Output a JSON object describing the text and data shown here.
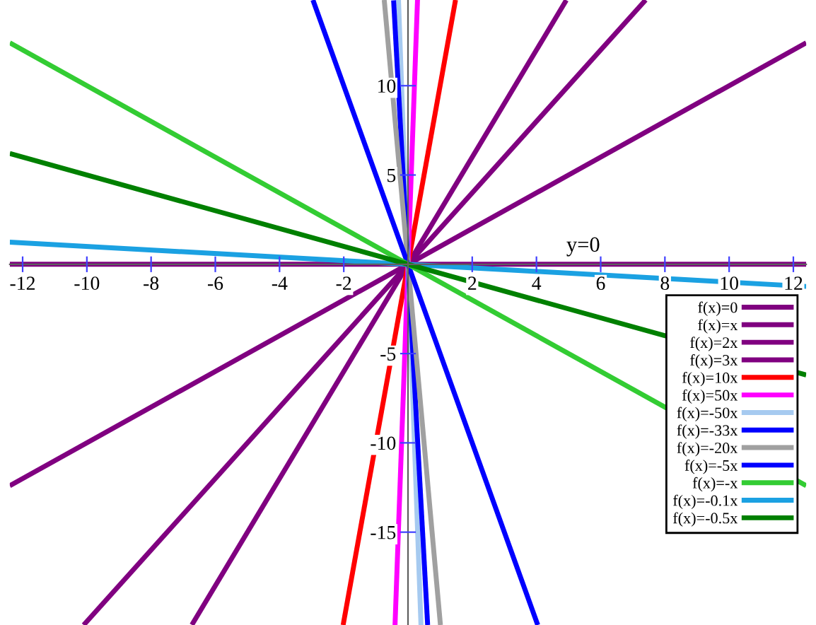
{
  "chart_data": {
    "type": "line",
    "xlim": [
      -12.4,
      12.4
    ],
    "ylim": [
      -20.2,
      14.8
    ],
    "xticks": [
      -12,
      -10,
      -8,
      -6,
      -4,
      -2,
      2,
      4,
      6,
      8,
      10,
      12
    ],
    "yticks": [
      -15,
      -10,
      -5,
      5,
      10
    ],
    "grid": false,
    "legend": "right",
    "marker": "none",
    "line_style": "solid",
    "annotations": [
      "y=0"
    ],
    "series": [
      {
        "name": "f(x)=0",
        "color": "#800080",
        "x": [
          -12.4,
          12.4
        ],
        "values": [
          0,
          0
        ]
      },
      {
        "name": "f(x)=x",
        "color": "#800080",
        "x": [
          -12.4,
          12.4
        ],
        "values": [
          -12.4,
          12.4
        ]
      },
      {
        "name": "f(x)=2x",
        "color": "#800080",
        "x": [
          -10.1,
          7.4
        ],
        "values": [
          -20.2,
          14.8
        ]
      },
      {
        "name": "f(x)=3x",
        "color": "#800080",
        "x": [
          -6.73,
          4.93
        ],
        "values": [
          -20.19,
          14.79
        ]
      },
      {
        "name": "f(x)=10x",
        "color": "#ff0000",
        "x": [
          -2.02,
          1.48
        ],
        "values": [
          -20.2,
          14.8
        ]
      },
      {
        "name": "f(x)=50x",
        "color": "#ff00ff",
        "x": [
          -0.404,
          0.296
        ],
        "values": [
          -20.2,
          14.8
        ]
      },
      {
        "name": "f(x)=-50x",
        "color": "#a6caf0",
        "x": [
          -0.296,
          0.404
        ],
        "values": [
          14.8,
          -20.2
        ]
      },
      {
        "name": "f(x)=-33x",
        "color": "#0000ff",
        "x": [
          -0.448,
          0.612
        ],
        "values": [
          14.78,
          -20.2
        ]
      },
      {
        "name": "f(x)=-20x",
        "color": "#a0a0a0",
        "x": [
          -0.74,
          1.01
        ],
        "values": [
          14.8,
          -20.2
        ]
      },
      {
        "name": "f(x)=-5x",
        "color": "#0000ff",
        "x": [
          -2.96,
          4.04
        ],
        "values": [
          14.8,
          -20.2
        ]
      },
      {
        "name": "f(x)=-x",
        "color": "#33cc33",
        "x": [
          -12.4,
          12.4
        ],
        "values": [
          12.4,
          -12.4
        ]
      },
      {
        "name": "f(x)=-0.1x",
        "color": "#1ba1e2",
        "x": [
          -12.4,
          12.4
        ],
        "values": [
          1.24,
          -1.24
        ]
      },
      {
        "name": "f(x)=-0.5x",
        "color": "#008000",
        "x": [
          -12.4,
          12.4
        ],
        "values": [
          6.2,
          -6.2
        ]
      }
    ]
  }
}
